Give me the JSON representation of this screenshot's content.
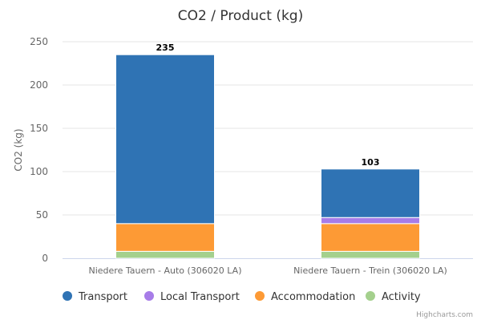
{
  "chart_data": {
    "type": "bar",
    "stacked": true,
    "title": "CO2 / Product (kg)",
    "xlabel": "",
    "ylabel": "CO2 (kg)",
    "ylim": [
      0,
      250
    ],
    "yticks": [
      0,
      50,
      100,
      150,
      200,
      250
    ],
    "grid": true,
    "legend_position": "bottom",
    "categories": [
      "Niedere Tauern - Auto (306020 LA)",
      "Niedere Tauern - Trein (306020 LA)"
    ],
    "totals": [
      235,
      103
    ],
    "series": [
      {
        "name": "Transport",
        "color": "#2f73b4",
        "values": [
          195,
          56
        ]
      },
      {
        "name": "Local Transport",
        "color": "#a77ce8",
        "values": [
          0,
          7
        ]
      },
      {
        "name": "Accommodation",
        "color": "#fd9a35",
        "values": [
          32,
          32
        ]
      },
      {
        "name": "Activity",
        "color": "#a4d08d",
        "values": [
          8,
          8
        ]
      }
    ],
    "credits": "Highcharts.com"
  }
}
